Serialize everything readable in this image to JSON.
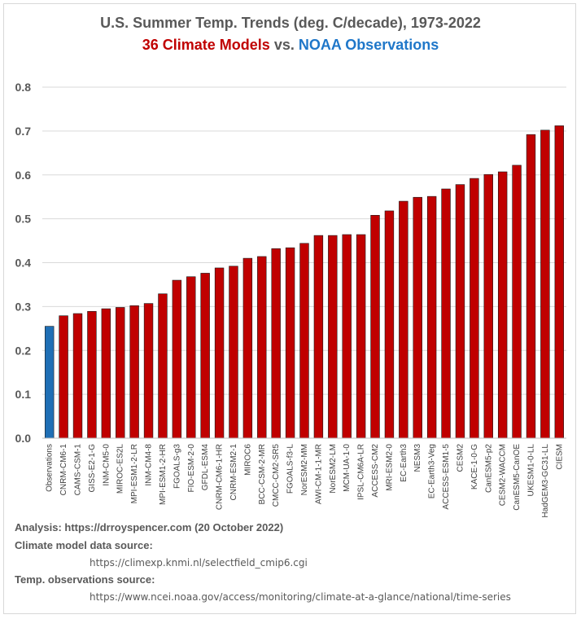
{
  "chart_data": {
    "type": "bar",
    "title": "U.S. Summer Temp. Trends (deg. C/decade), 1973-2022",
    "subtitle_models": "36 Climate Models",
    "subtitle_vs": " vs. ",
    "subtitle_obs": "NOAA Observations",
    "ylim": [
      0,
      0.8
    ],
    "yticks": [
      "0.0",
      "0.1",
      "0.2",
      "0.3",
      "0.4",
      "0.5",
      "0.6",
      "0.7",
      "0.8"
    ],
    "grid": true,
    "categories": [
      "Observations",
      "CNRM-CM6-1",
      "CAMS-CSM-1",
      "GISS-E2-1-G",
      "INM-CM5-0",
      "MIROC-ES2L",
      "MPI-ESM1-2-LR",
      "INM-CM4-8",
      "MPI-ESM1-2-HR",
      "FGOALS-g3",
      "FIO-ESM-2-0",
      "GFDL-ESM4",
      "CNRM-CM6-1-HR",
      "CNRM-ESM2-1",
      "MIROC6",
      "BCC-CSM-2-MR",
      "CMCC-CM2-SR5",
      "FGOALS-f3-L",
      "NorESM2-MM",
      "AWI-CM-1-1-MR",
      "NorESM2-LM",
      "MCM-UA-1-0",
      "IPSL-CM6A-LR",
      "ACCESS-CM2",
      "MRI-ESM2-0",
      "EC-Earth3",
      "NESM3",
      "EC-Earth3-Veg",
      "ACCESS-ESM1-5",
      "CESM2",
      "KACE-1-0-G",
      "CanESM5-p2",
      "CESM2-WACCM",
      "CanESM5-CanOE",
      "UKESM1-0-LL",
      "HadGEM3-GC31-LL",
      "CIESM"
    ],
    "values": [
      0.255,
      0.279,
      0.284,
      0.289,
      0.295,
      0.298,
      0.302,
      0.307,
      0.329,
      0.36,
      0.368,
      0.376,
      0.388,
      0.392,
      0.41,
      0.414,
      0.432,
      0.434,
      0.444,
      0.462,
      0.462,
      0.464,
      0.464,
      0.508,
      0.518,
      0.54,
      0.549,
      0.551,
      0.568,
      0.578,
      0.592,
      0.601,
      0.607,
      0.622,
      0.692,
      0.702,
      0.712
    ],
    "colors": {
      "observations": "#1f6fb5",
      "models": "#c00000",
      "bar_edge": "#1a1a1a"
    }
  },
  "notes": {
    "analysis": "Analysis: https://drroyspencer.com (20 October 2022)",
    "model_source_label": "Climate model data source:",
    "model_source_url": "https://climexp.knmi.nl/selectfield_cmip6.cgi",
    "obs_source_label": "Temp. observations source:",
    "obs_source_url": "https://www.ncei.noaa.gov/access/monitoring/climate-at-a-glance/national/time-series"
  }
}
